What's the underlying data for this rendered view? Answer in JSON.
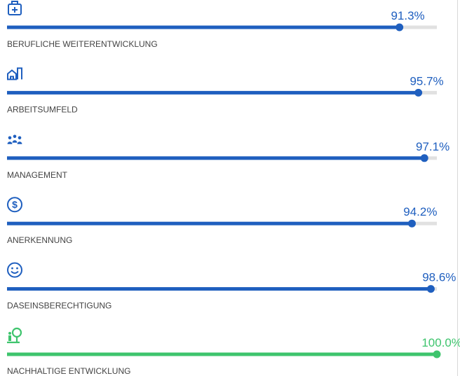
{
  "chart_data": {
    "type": "progress",
    "categories": [
      "BERUFLICHE WEITERENTWICKLUNG",
      "ARBEITSUMFELD",
      "MANAGEMENT",
      "ANERKENNUNG",
      "DASEINSBERECHTIGUNG",
      "NACHHALTIGE ENTWICKLUNG"
    ],
    "values": [
      91.3,
      95.7,
      97.1,
      94.2,
      98.6,
      100.0
    ],
    "value_labels": [
      "91.3%",
      "95.7%",
      "97.1%",
      "94.2%",
      "98.6%",
      "100.0%"
    ],
    "colors": [
      "#1f5fbf",
      "#1f5fbf",
      "#1f5fbf",
      "#1f5fbf",
      "#1f5fbf",
      "#3ec46d"
    ],
    "xlim": [
      0,
      100
    ]
  }
}
